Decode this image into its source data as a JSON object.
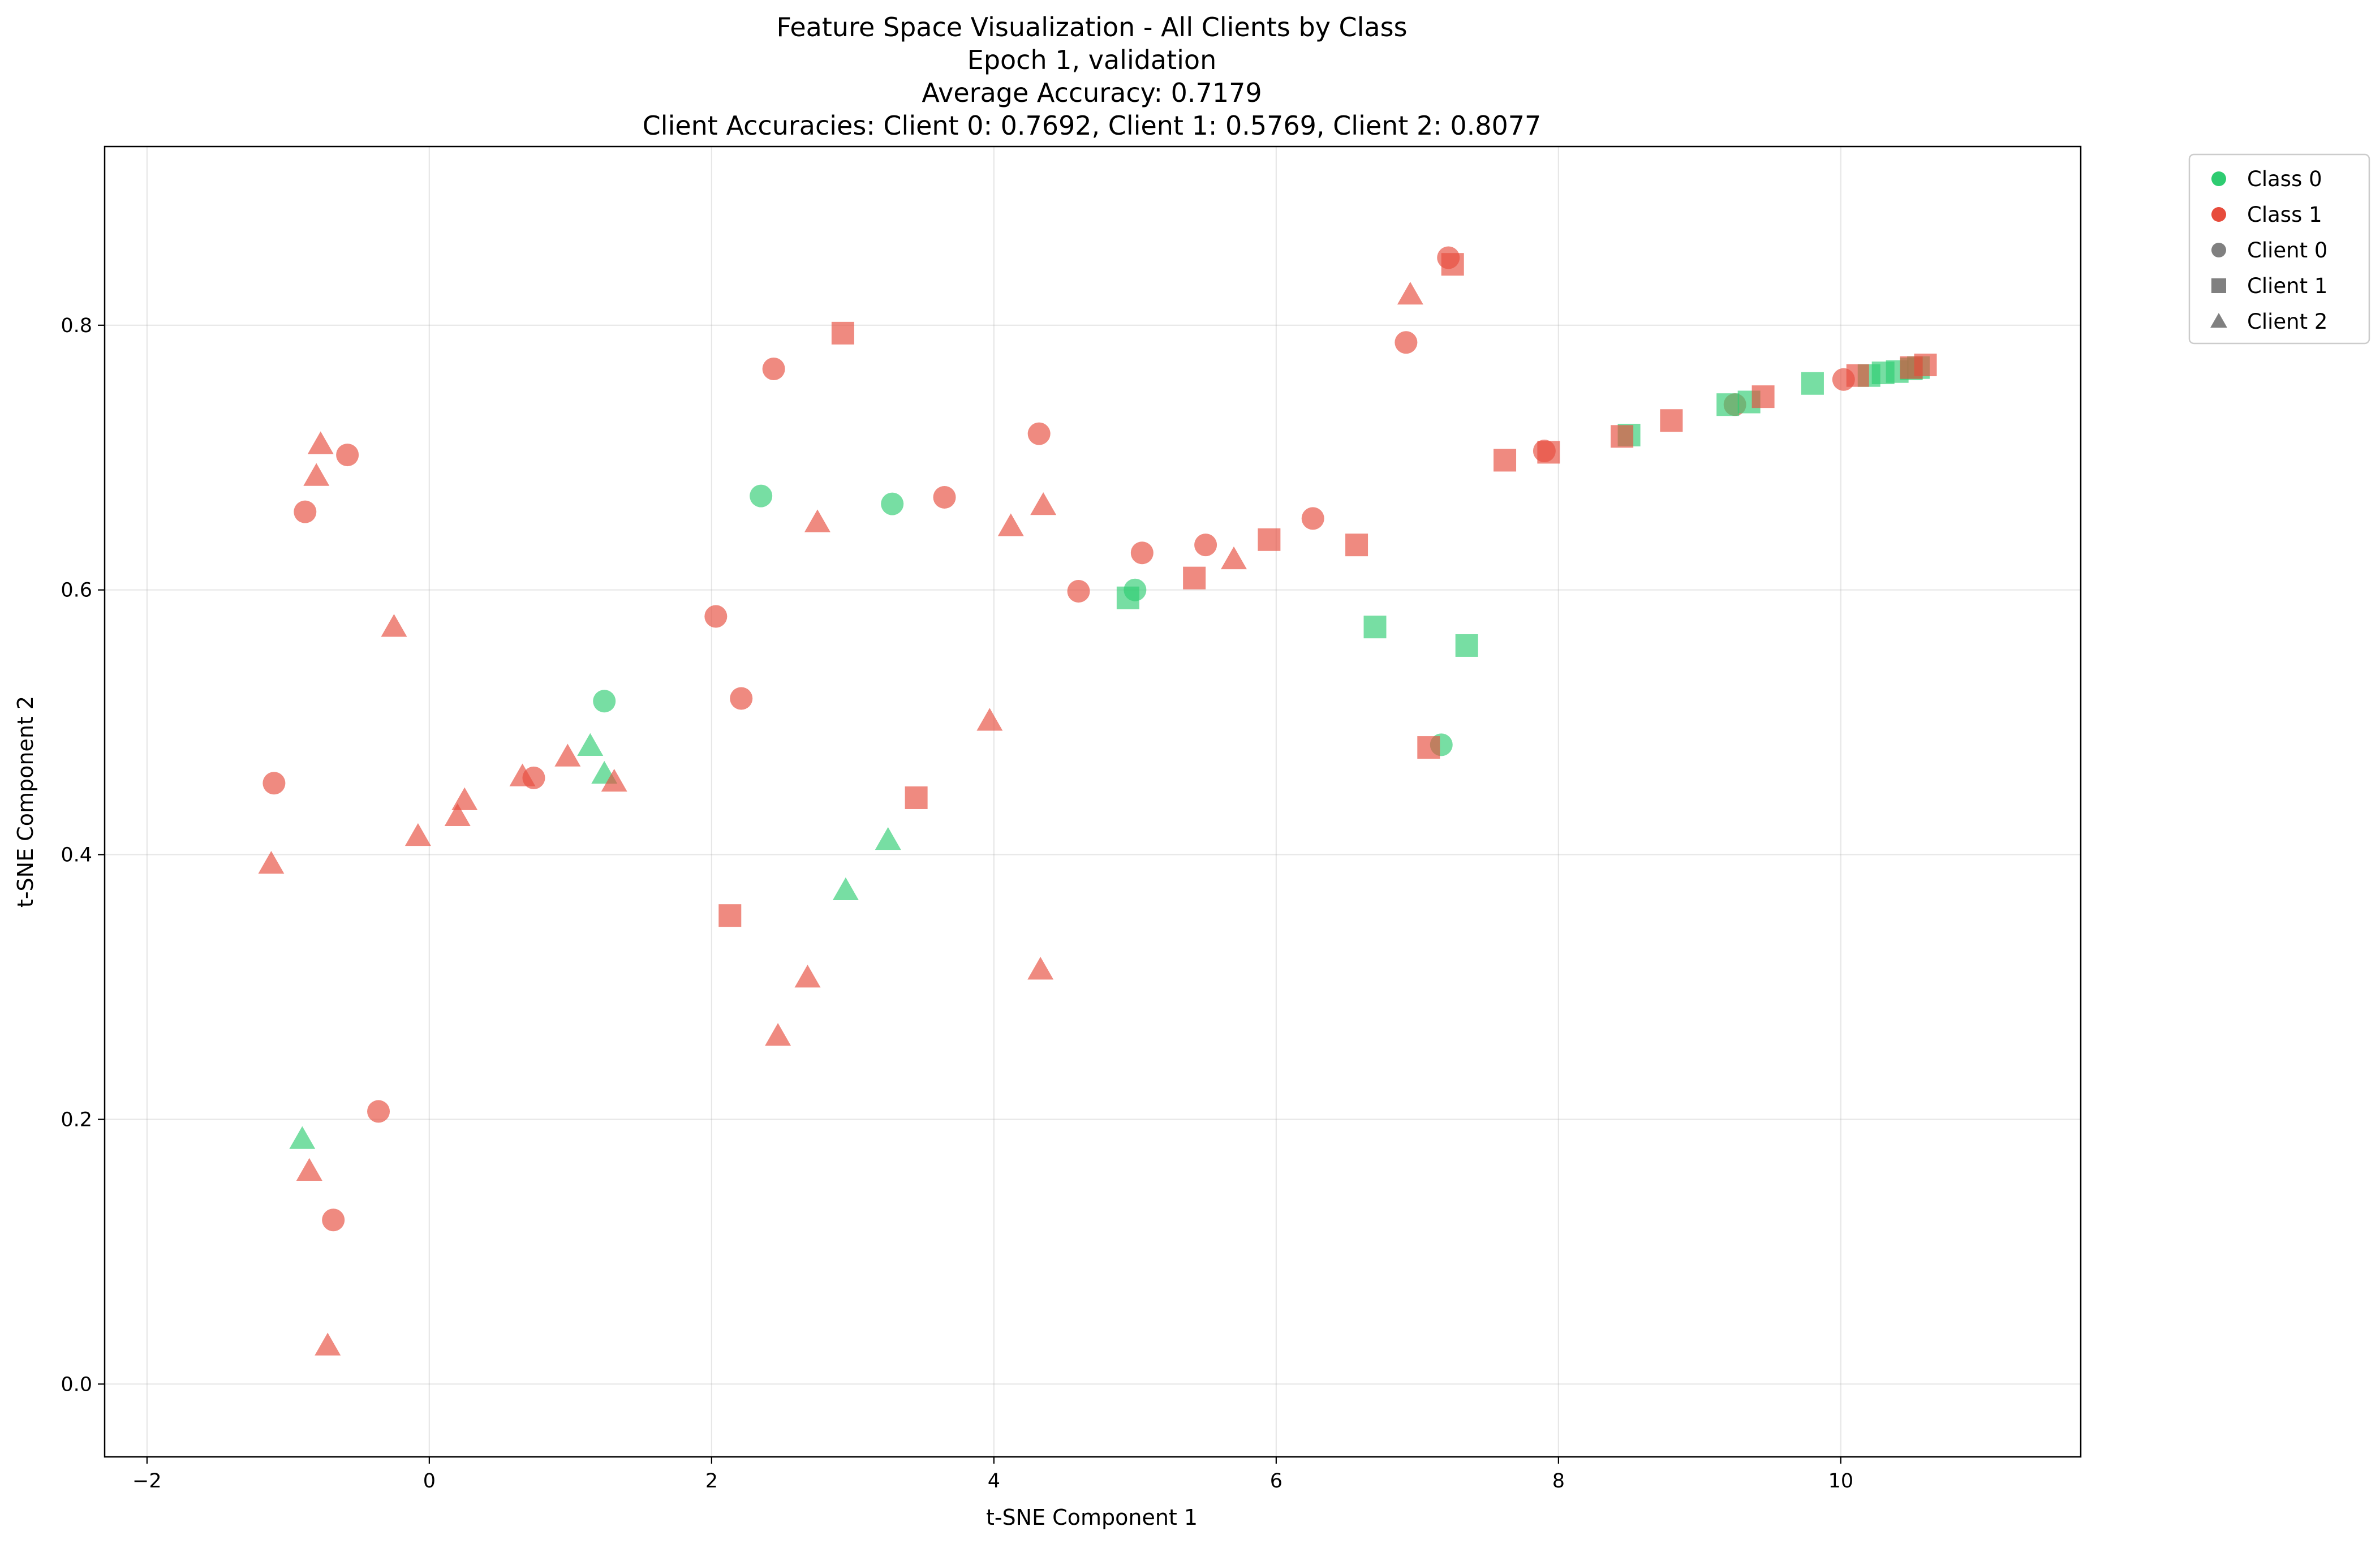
{
  "chart_data": {
    "type": "scatter",
    "title_lines": [
      "Feature Space Visualization - All Clients by Class",
      "Epoch 1, validation",
      "Average Accuracy: 0.7179",
      "Client Accuracies: Client 0: 0.7692, Client 1: 0.5769, Client 2: 0.8077"
    ],
    "xlabel": "t-SNE Component 1",
    "ylabel": "t-SNE Component 2",
    "xlim": [
      -2.3,
      11.7
    ],
    "ylim": [
      -0.055,
      0.935
    ],
    "xticks": [
      -2,
      0,
      2,
      4,
      6,
      8,
      10
    ],
    "yticks": [
      0.0,
      0.2,
      0.4,
      0.6,
      0.8
    ],
    "xtick_labels": [
      "−2",
      "0",
      "2",
      "4",
      "6",
      "8",
      "10"
    ],
    "ytick_labels": [
      "0.0",
      "0.2",
      "0.4",
      "0.6",
      "0.8"
    ],
    "grid": true,
    "legend_position": "outside-top-right",
    "legend": [
      {
        "label": "Class 0",
        "marker": "circle",
        "color": "#2ecc71"
      },
      {
        "label": "Class 1",
        "marker": "circle",
        "color": "#e74c3c"
      },
      {
        "label": "Client 0",
        "marker": "circle",
        "color": "#808080"
      },
      {
        "label": "Client 1",
        "marker": "square",
        "color": "#808080"
      },
      {
        "label": "Client 2",
        "marker": "triangle",
        "color": "#808080"
      }
    ],
    "class_colors": {
      "0": "#2ecc71",
      "1": "#e74c3c"
    },
    "client_markers": {
      "0": "circle",
      "1": "square",
      "2": "triangle"
    },
    "series": [
      {
        "client": 0,
        "class": 0,
        "points": [
          [
            2.35,
            0.671
          ],
          [
            3.28,
            0.665
          ],
          [
            1.24,
            0.516
          ],
          [
            5.0,
            0.6
          ],
          [
            7.17,
            0.483
          ]
        ]
      },
      {
        "client": 0,
        "class": 1,
        "points": [
          [
            -0.88,
            0.659
          ],
          [
            -0.58,
            0.702
          ],
          [
            -1.1,
            0.454
          ],
          [
            0.74,
            0.458
          ],
          [
            2.03,
            0.58
          ],
          [
            2.21,
            0.518
          ],
          [
            2.44,
            0.767
          ],
          [
            3.65,
            0.67
          ],
          [
            4.32,
            0.718
          ],
          [
            4.6,
            0.599
          ],
          [
            5.05,
            0.628
          ],
          [
            5.5,
            0.634
          ],
          [
            6.26,
            0.654
          ],
          [
            6.92,
            0.787
          ],
          [
            7.22,
            0.851
          ],
          [
            7.9,
            0.705
          ],
          [
            9.25,
            0.74
          ],
          [
            10.02,
            0.759
          ],
          [
            -0.36,
            0.206
          ],
          [
            -0.68,
            0.124
          ]
        ]
      },
      {
        "client": 1,
        "class": 0,
        "points": [
          [
            4.95,
            0.594
          ],
          [
            6.7,
            0.572
          ],
          [
            7.35,
            0.558
          ],
          [
            8.5,
            0.717
          ],
          [
            9.2,
            0.74
          ],
          [
            9.35,
            0.742
          ],
          [
            9.8,
            0.756
          ],
          [
            10.2,
            0.762
          ],
          [
            10.3,
            0.764
          ],
          [
            10.4,
            0.765
          ],
          [
            10.5,
            0.767
          ],
          [
            10.55,
            0.768
          ]
        ]
      },
      {
        "client": 1,
        "class": 1,
        "points": [
          [
            2.93,
            0.794
          ],
          [
            7.25,
            0.846
          ],
          [
            7.62,
            0.698
          ],
          [
            7.93,
            0.704
          ],
          [
            8.45,
            0.716
          ],
          [
            8.8,
            0.728
          ],
          [
            9.45,
            0.746
          ],
          [
            10.12,
            0.762
          ],
          [
            10.5,
            0.768
          ],
          [
            10.6,
            0.77
          ],
          [
            5.42,
            0.609
          ],
          [
            5.95,
            0.638
          ],
          [
            6.57,
            0.634
          ],
          [
            7.08,
            0.481
          ],
          [
            3.45,
            0.443
          ],
          [
            2.13,
            0.354
          ]
        ]
      },
      {
        "client": 2,
        "class": 0,
        "points": [
          [
            1.14,
            0.482
          ],
          [
            1.24,
            0.461
          ],
          [
            3.25,
            0.411
          ],
          [
            2.95,
            0.373
          ],
          [
            -0.9,
            0.185
          ]
        ]
      },
      {
        "client": 2,
        "class": 1,
        "points": [
          [
            -0.77,
            0.71
          ],
          [
            -0.8,
            0.686
          ],
          [
            -0.25,
            0.572
          ],
          [
            -1.12,
            0.393
          ],
          [
            -0.08,
            0.414
          ],
          [
            0.2,
            0.429
          ],
          [
            0.25,
            0.441
          ],
          [
            0.66,
            0.459
          ],
          [
            0.98,
            0.474
          ],
          [
            1.31,
            0.455
          ],
          [
            2.75,
            0.651
          ],
          [
            4.12,
            0.648
          ],
          [
            4.35,
            0.664
          ],
          [
            5.7,
            0.623
          ],
          [
            3.97,
            0.501
          ],
          [
            2.68,
            0.307
          ],
          [
            2.47,
            0.263
          ],
          [
            4.33,
            0.313
          ],
          [
            6.95,
            0.823
          ],
          [
            -0.85,
            0.161
          ],
          [
            -0.72,
            0.029
          ]
        ]
      }
    ]
  }
}
